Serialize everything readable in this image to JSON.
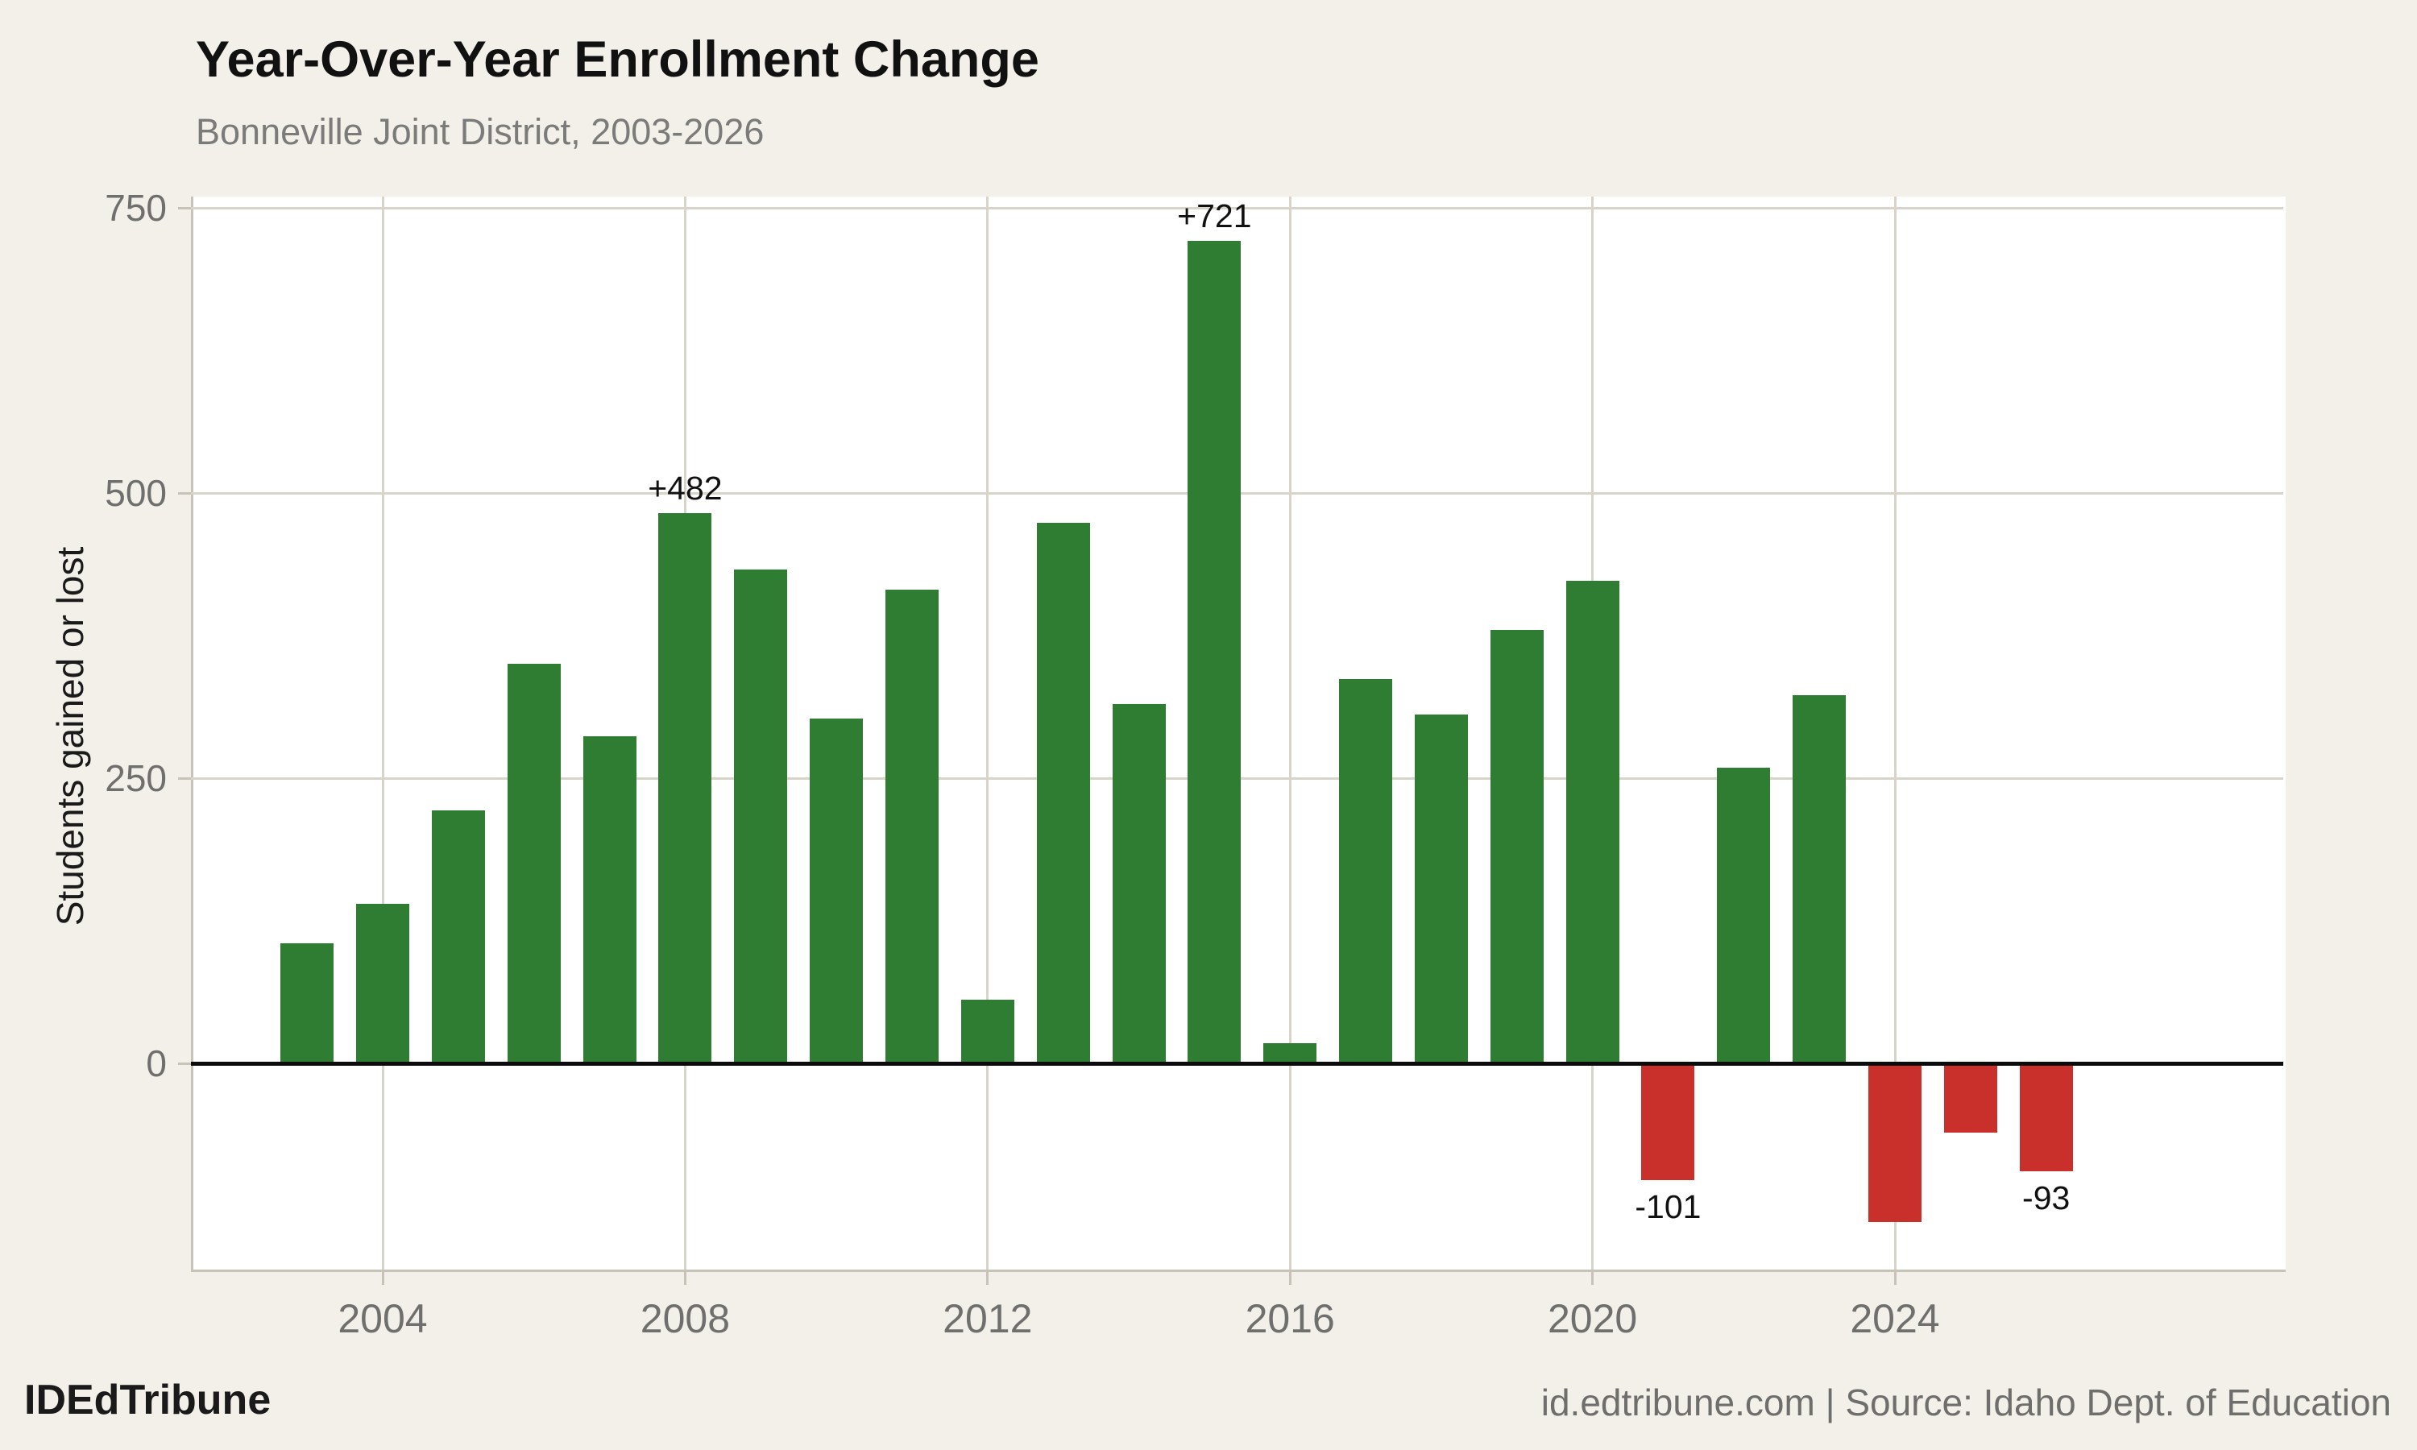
{
  "header": {
    "title": "Year-Over-Year Enrollment Change",
    "subtitle": "Bonneville Joint District, 2003-2026"
  },
  "footer": {
    "brand": "IDEdTribune",
    "source": "id.edtribune.com | Source: Idaho Dept. of Education"
  },
  "colors": {
    "background": "#f3efe9",
    "plot_background": "#ffffff",
    "grid": "#d8d4ca",
    "axis_edge": "#c8c3b9",
    "baseline": "#0b0b0b",
    "positive_bar": "#2e7d32",
    "negative_bar": "#c9302c",
    "tick_text": "#6f6f6d",
    "subtitle_text": "#7b7b79"
  },
  "chart_data": {
    "type": "bar",
    "title": "Year-Over-Year Enrollment Change",
    "subtitle": "Bonneville Joint District, 2003-2026",
    "xlabel": "",
    "ylabel": "Students gained or lost",
    "x_ticks": [
      2004,
      2008,
      2012,
      2016,
      2020,
      2024
    ],
    "y_ticks": [
      0,
      250,
      500,
      750
    ],
    "x_range": [
      2001.5,
      2029.1
    ],
    "y_range": [
      -181,
      760
    ],
    "grid": true,
    "legend": "none",
    "categories": [
      2003,
      2004,
      2005,
      2006,
      2007,
      2008,
      2009,
      2010,
      2011,
      2012,
      2013,
      2014,
      2015,
      2016,
      2017,
      2018,
      2019,
      2020,
      2021,
      2022,
      2023,
      2024,
      2025,
      2026
    ],
    "values": [
      105,
      140,
      222,
      350,
      287,
      482,
      433,
      302,
      415,
      56,
      474,
      315,
      721,
      18,
      337,
      306,
      380,
      423,
      -101,
      259,
      323,
      -138,
      -59,
      -93
    ],
    "annotations": [
      {
        "year": 2008,
        "text": "+482"
      },
      {
        "year": 2015,
        "text": "+721"
      },
      {
        "year": 2021,
        "text": "-101"
      },
      {
        "year": 2026,
        "text": "-93"
      }
    ]
  }
}
